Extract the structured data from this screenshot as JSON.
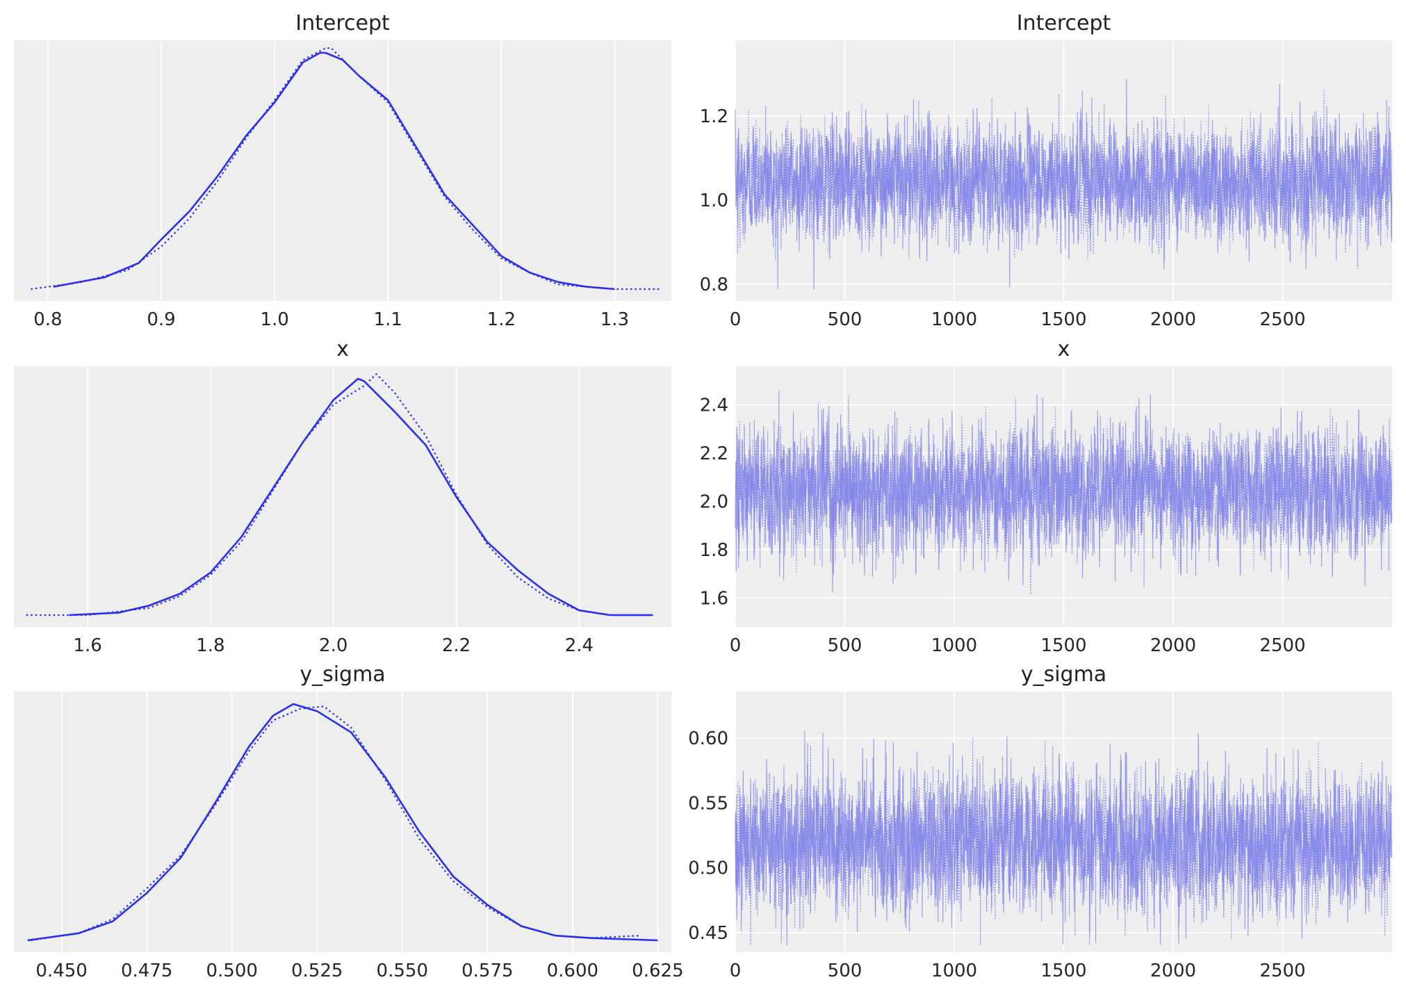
{
  "colors": {
    "panel_background": "#eeeeee",
    "grid": "#ffffff",
    "kde_line": "#2a2eec",
    "trace_line": "#7b7ee8"
  },
  "chart_data": [
    {
      "type": "line",
      "title": "Intercept",
      "plot": "posterior-density",
      "xlim": [
        0.77,
        1.35
      ],
      "x_ticks": [
        "0.8",
        "0.9",
        "1.0",
        "1.1",
        "1.2",
        "1.3"
      ],
      "x_tick_values": [
        0.8,
        0.9,
        1.0,
        1.1,
        1.2,
        1.3
      ],
      "y_ticks_shown": false,
      "grid": "vertical",
      "series": [
        {
          "style": "solid",
          "x": [
            0.805,
            0.85,
            0.88,
            0.9,
            0.925,
            0.95,
            0.975,
            1.0,
            1.025,
            1.04,
            1.045,
            1.06,
            1.075,
            1.1,
            1.125,
            1.15,
            1.175,
            1.2,
            1.225,
            1.25,
            1.275,
            1.3
          ],
          "y": [
            0.01,
            0.05,
            0.11,
            0.21,
            0.33,
            0.48,
            0.65,
            0.79,
            0.96,
            1.0,
            1.0,
            0.97,
            0.9,
            0.8,
            0.6,
            0.4,
            0.27,
            0.14,
            0.07,
            0.03,
            0.01,
            0.0
          ]
        },
        {
          "style": "dotted",
          "x": [
            0.785,
            0.83,
            0.87,
            0.9,
            0.925,
            0.95,
            0.975,
            1.0,
            1.025,
            1.045,
            1.05,
            1.075,
            1.1,
            1.125,
            1.15,
            1.175,
            1.2,
            1.225,
            1.25,
            1.275,
            1.3,
            1.34
          ],
          "y": [
            0.0,
            0.03,
            0.08,
            0.18,
            0.3,
            0.46,
            0.64,
            0.8,
            0.97,
            1.02,
            1.02,
            0.9,
            0.79,
            0.59,
            0.39,
            0.25,
            0.13,
            0.07,
            0.02,
            0.01,
            0.0,
            0.0
          ]
        }
      ]
    },
    {
      "type": "line",
      "title": "Intercept",
      "plot": "trace",
      "xlim": [
        0,
        3000
      ],
      "ylim": [
        0.76,
        1.38
      ],
      "x_ticks": [
        "0",
        "500",
        "1000",
        "1500",
        "2000",
        "2500"
      ],
      "x_tick_values": [
        0,
        500,
        1000,
        1500,
        2000,
        2500
      ],
      "y_ticks": [
        "0.8",
        "1.0",
        "1.2"
      ],
      "y_tick_values": [
        0.8,
        1.0,
        1.2
      ],
      "grid": "both",
      "draws": 3000,
      "chains": 2,
      "mean": 1.045,
      "sd": 0.065,
      "min": 0.78,
      "max": 1.34
    },
    {
      "type": "line",
      "title": "x",
      "plot": "posterior-density",
      "xlim": [
        1.48,
        2.55
      ],
      "x_ticks": [
        "1.6",
        "1.8",
        "2.0",
        "2.2",
        "2.4"
      ],
      "x_tick_values": [
        1.6,
        1.8,
        2.0,
        2.2,
        2.4
      ],
      "y_ticks_shown": false,
      "grid": "vertical",
      "series": [
        {
          "style": "solid",
          "x": [
            1.57,
            1.65,
            1.7,
            1.75,
            1.8,
            1.85,
            1.9,
            1.95,
            2.0,
            2.04,
            2.05,
            2.1,
            2.15,
            2.2,
            2.25,
            2.3,
            2.35,
            2.4,
            2.45,
            2.52
          ],
          "y": [
            0.0,
            0.01,
            0.04,
            0.09,
            0.18,
            0.33,
            0.53,
            0.73,
            0.91,
            1.0,
            0.99,
            0.86,
            0.72,
            0.5,
            0.31,
            0.19,
            0.09,
            0.02,
            0.0,
            0.0
          ]
        },
        {
          "style": "dotted",
          "x": [
            1.5,
            1.6,
            1.7,
            1.75,
            1.8,
            1.85,
            1.9,
            1.95,
            2.0,
            2.05,
            2.07,
            2.1,
            2.15,
            2.2,
            2.25,
            2.3,
            2.35,
            2.4,
            2.45
          ],
          "y": [
            0.0,
            0.0,
            0.03,
            0.08,
            0.17,
            0.31,
            0.52,
            0.73,
            0.89,
            0.97,
            1.02,
            0.94,
            0.76,
            0.51,
            0.3,
            0.16,
            0.07,
            0.02,
            0.0
          ]
        }
      ]
    },
    {
      "type": "line",
      "title": "x",
      "plot": "trace",
      "xlim": [
        0,
        3000
      ],
      "ylim": [
        1.48,
        2.56
      ],
      "x_ticks": [
        "0",
        "500",
        "1000",
        "1500",
        "2000",
        "2500"
      ],
      "x_tick_values": [
        0,
        500,
        1000,
        1500,
        2000,
        2500
      ],
      "y_ticks": [
        "1.6",
        "1.8",
        "2.0",
        "2.2",
        "2.4"
      ],
      "y_tick_values": [
        1.6,
        1.8,
        2.0,
        2.2,
        2.4
      ],
      "grid": "both",
      "draws": 3000,
      "chains": 2,
      "mean": 2.05,
      "sd": 0.12,
      "min": 1.5,
      "max": 2.52
    },
    {
      "type": "line",
      "title": "y_sigma",
      "plot": "posterior-density",
      "xlim": [
        0.436,
        0.629
      ],
      "x_ticks": [
        "0.450",
        "0.475",
        "0.500",
        "0.525",
        "0.550",
        "0.575",
        "0.600",
        "0.625"
      ],
      "x_tick_values": [
        0.45,
        0.475,
        0.5,
        0.525,
        0.55,
        0.575,
        0.6,
        0.625
      ],
      "y_ticks_shown": false,
      "grid": "vertical",
      "series": [
        {
          "style": "solid",
          "x": [
            0.44,
            0.455,
            0.465,
            0.475,
            0.485,
            0.495,
            0.505,
            0.512,
            0.518,
            0.525,
            0.535,
            0.545,
            0.555,
            0.565,
            0.575,
            0.585,
            0.595,
            0.605,
            0.625
          ],
          "y": [
            0.0,
            0.03,
            0.08,
            0.2,
            0.35,
            0.58,
            0.82,
            0.95,
            1.0,
            0.97,
            0.88,
            0.69,
            0.46,
            0.27,
            0.15,
            0.06,
            0.02,
            0.01,
            0.0
          ]
        },
        {
          "style": "dotted",
          "x": [
            0.441,
            0.455,
            0.465,
            0.475,
            0.485,
            0.495,
            0.505,
            0.512,
            0.52,
            0.527,
            0.535,
            0.545,
            0.555,
            0.565,
            0.575,
            0.585,
            0.595,
            0.605,
            0.62
          ],
          "y": [
            0.0,
            0.03,
            0.09,
            0.22,
            0.36,
            0.57,
            0.8,
            0.93,
            0.98,
            0.99,
            0.9,
            0.68,
            0.43,
            0.25,
            0.14,
            0.06,
            0.02,
            0.01,
            0.02
          ]
        }
      ]
    },
    {
      "type": "line",
      "title": "y_sigma",
      "plot": "trace",
      "xlim": [
        0,
        3000
      ],
      "ylim": [
        0.435,
        0.636
      ],
      "x_ticks": [
        "0",
        "500",
        "1000",
        "1500",
        "2000",
        "2500"
      ],
      "x_tick_values": [
        0,
        500,
        1000,
        1500,
        2000,
        2500
      ],
      "y_ticks": [
        "0.45",
        "0.50",
        "0.55",
        "0.60"
      ],
      "y_tick_values": [
        0.45,
        0.5,
        0.55,
        0.6
      ],
      "grid": "both",
      "draws": 3000,
      "chains": 2,
      "mean": 0.52,
      "sd": 0.025,
      "min": 0.44,
      "max": 0.625
    }
  ]
}
